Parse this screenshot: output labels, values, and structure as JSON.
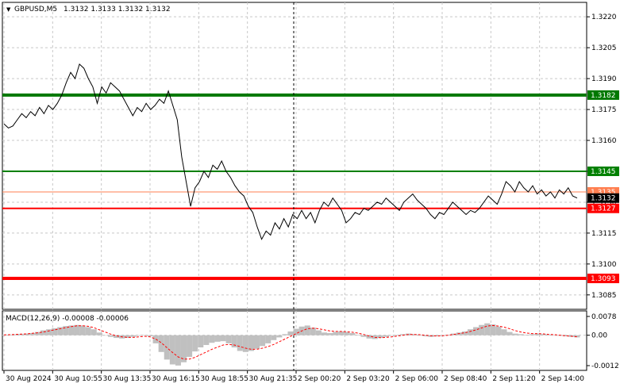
{
  "header": {
    "menu_glyph": "▼",
    "symbol": "GBPUSD,M5",
    "ohlc": "1.3132 1.3133 1.3132 1.3132"
  },
  "colors": {
    "price_line": "#000000",
    "grid": "#c8c8c8",
    "strong_green": "#007800",
    "green": "#008000",
    "red": "#ff0000",
    "orange": "#ff7f50",
    "macd_hist": "#c0c0c0",
    "macd_signal": "#ff0000",
    "current_price_bg": "#000000"
  },
  "chart_data": [
    {
      "type": "line",
      "title": "GBPUSD,M5",
      "y_axis_ticks": [
        "1.3220",
        "1.3205",
        "1.3190",
        "1.3175",
        "1.3160",
        "1.3145",
        "1.3130",
        "1.3115",
        "1.3100",
        "1.3085"
      ],
      "ylim": [
        1.3078,
        1.3227
      ],
      "grid": true,
      "x_tick_labels": [
        "30 Aug 2024",
        "30 Aug 10:55",
        "30 Aug 13:35",
        "30 Aug 16:15",
        "30 Aug 18:55",
        "30 Aug 21:35",
        "2 Sep 00:20",
        "2 Sep 03:20",
        "2 Sep 06:00",
        "2 Sep 08:40",
        "2 Sep 11:20",
        "2 Sep 14:00"
      ],
      "series": [
        {
          "values": [
            1.3168,
            1.3166,
            1.3167,
            1.317,
            1.3173,
            1.3171,
            1.3174,
            1.3172,
            1.3176,
            1.3173,
            1.3177,
            1.3175,
            1.3178,
            1.3182,
            1.3188,
            1.3193,
            1.319,
            1.3197,
            1.3195,
            1.319,
            1.3186,
            1.3178,
            1.3186,
            1.3183,
            1.3188,
            1.3186,
            1.3184,
            1.318,
            1.3176,
            1.3172,
            1.3176,
            1.3174,
            1.3178,
            1.3175,
            1.3177,
            1.318,
            1.3178,
            1.3184,
            1.3177,
            1.317,
            1.3152,
            1.314,
            1.3128,
            1.3137,
            1.314,
            1.3145,
            1.3142,
            1.3148,
            1.3146,
            1.315,
            1.3145,
            1.3142,
            1.3138,
            1.3135,
            1.3133,
            1.3128,
            1.3125,
            1.3118,
            1.3112,
            1.3116,
            1.3114,
            1.312,
            1.3117,
            1.3122,
            1.3118,
            1.3124,
            1.3122,
            1.3126,
            1.3122,
            1.3125,
            1.312,
            1.3126,
            1.313,
            1.3128,
            1.3132,
            1.3129,
            1.3126,
            1.312,
            1.3122,
            1.3125,
            1.3124,
            1.3127,
            1.3126,
            1.3128,
            1.313,
            1.3129,
            1.3132,
            1.313,
            1.3128,
            1.3126,
            1.313,
            1.3132,
            1.3134,
            1.3131,
            1.3129,
            1.3127,
            1.3124,
            1.3122,
            1.3125,
            1.3124,
            1.3127,
            1.313,
            1.3128,
            1.3126,
            1.3124,
            1.3126,
            1.3125,
            1.3127,
            1.313,
            1.3133,
            1.3131,
            1.3129,
            1.3134,
            1.314,
            1.3138,
            1.3135,
            1.314,
            1.3137,
            1.3135,
            1.3138,
            1.3134,
            1.3136,
            1.3133,
            1.3135,
            1.3132,
            1.3136,
            1.3134,
            1.3137,
            1.3133,
            1.3132
          ],
          "x_range": [
            "30 Aug 2024",
            "2 Sep 14:00"
          ]
        }
      ],
      "levels": [
        {
          "label": "1.3182",
          "value": 1.3182,
          "color": "#007800"
        },
        {
          "label": "1.3145",
          "value": 1.3145,
          "color": "#008000"
        },
        {
          "label": "1.3135",
          "value": 1.3135,
          "color": "#ff7f50"
        },
        {
          "label": "1.3127",
          "value": 1.3127,
          "color": "#ff0000"
        },
        {
          "label": "1.3093",
          "value": 1.3093,
          "color": "#ff0000"
        }
      ],
      "current_price": {
        "label": "1.3132",
        "value": 1.3132
      },
      "session_separator": "2 Sep 00:20"
    },
    {
      "type": "bar",
      "title": "MACD(12,26,9) -0.00008 -0.00006",
      "y_axis_ticks": [
        "0.0078",
        "0.00",
        "-0.0012"
      ],
      "ylim": [
        -0.0013,
        0.0009
      ],
      "series": [
        {
          "name": "MACD",
          "values": [
            1e-05,
            2e-05,
            3e-05,
            4e-05,
            6e-05,
            8e-05,
            0.00012,
            0.00018,
            0.00022,
            0.00026,
            0.0003,
            0.00034,
            0.00036,
            0.00038,
            0.00036,
            0.0003,
            0.00022,
            0.0001,
            0.0,
            -6e-05,
            -0.0001,
            -0.00012,
            -0.0001,
            -6e-05,
            -2e-05,
            1e-05,
            -4e-05,
            -0.0003,
            -0.00062,
            -0.0009,
            -0.00108,
            -0.00112,
            -0.001,
            -0.0008,
            -0.0006,
            -0.00045,
            -0.00036,
            -0.00028,
            -0.00024,
            -0.00022,
            -0.0003,
            -0.00045,
            -0.00058,
            -0.00062,
            -0.00058,
            -0.0005,
            -0.0004,
            -0.0003,
            -0.00018,
            -8e-05,
            4e-05,
            0.00014,
            0.00024,
            0.00032,
            0.00036,
            0.00028,
            0.00018,
            0.0001,
            8e-05,
            0.00012,
            0.00014,
            0.00012,
            8e-05,
            2e-05,
            -6e-05,
            -0.00012,
            -0.00014,
            -0.0001,
            -6e-05,
            -2e-05,
            2e-05,
            4e-05,
            6e-05,
            4e-05,
            0.0,
            -4e-05,
            -6e-05,
            -4e-05,
            -2e-05,
            2e-05,
            6e-05,
            0.0001,
            0.00014,
            0.00022,
            0.0003,
            0.00038,
            0.00044,
            0.0004,
            0.00032,
            0.00022,
            0.00012,
            6e-05,
            4e-05,
            2e-05,
            4e-05,
            6e-05,
            4e-05,
            2e-05,
            0.0,
            -2e-05,
            -4e-05,
            -6e-05,
            -8e-05
          ]
        },
        {
          "name": "Signal",
          "values": [
            1e-05,
            2e-05,
            3e-05,
            4e-05,
            5e-05,
            7e-05,
            9e-05,
            0.00012,
            0.00016,
            0.0002,
            0.00024,
            0.00028,
            0.00032,
            0.00035,
            0.00035,
            0.00033,
            0.00028,
            0.0002,
            0.00012,
            4e-05,
            -2e-05,
            -6e-05,
            -8e-05,
            -8e-05,
            -6e-05,
            -4e-05,
            -6e-05,
            -0.00014,
            -0.00028,
            -0.00046,
            -0.00064,
            -0.0008,
            -0.00088,
            -0.00088,
            -0.00082,
            -0.00072,
            -0.00062,
            -0.00052,
            -0.00044,
            -0.00036,
            -0.00034,
            -0.00036,
            -0.00042,
            -0.00048,
            -0.00052,
            -0.00052,
            -0.00048,
            -0.00042,
            -0.00034,
            -0.00024,
            -0.00014,
            -4e-05,
            6e-05,
            0.00016,
            0.00024,
            0.00026,
            0.00024,
            0.0002,
            0.00016,
            0.00014,
            0.00014,
            0.00013,
            0.00011,
            8e-05,
            3e-05,
            -3e-05,
            -8e-05,
            -9e-05,
            -8e-05,
            -6e-05,
            -3e-05,
            0.0,
            3e-05,
            3e-05,
            2e-05,
            0.0,
            -2e-05,
            -3e-05,
            -2e-05,
            0.0,
            3e-05,
            6e-05,
            9e-05,
            0.00014,
            0.0002,
            0.00027,
            0.00034,
            0.00036,
            0.00034,
            0.0003,
            0.00024,
            0.00017,
            0.00012,
            8e-05,
            6e-05,
            6e-05,
            5e-05,
            3e-05,
            2e-05,
            0.0,
            -2e-05,
            -4e-05,
            -6e-05
          ]
        }
      ]
    }
  ]
}
